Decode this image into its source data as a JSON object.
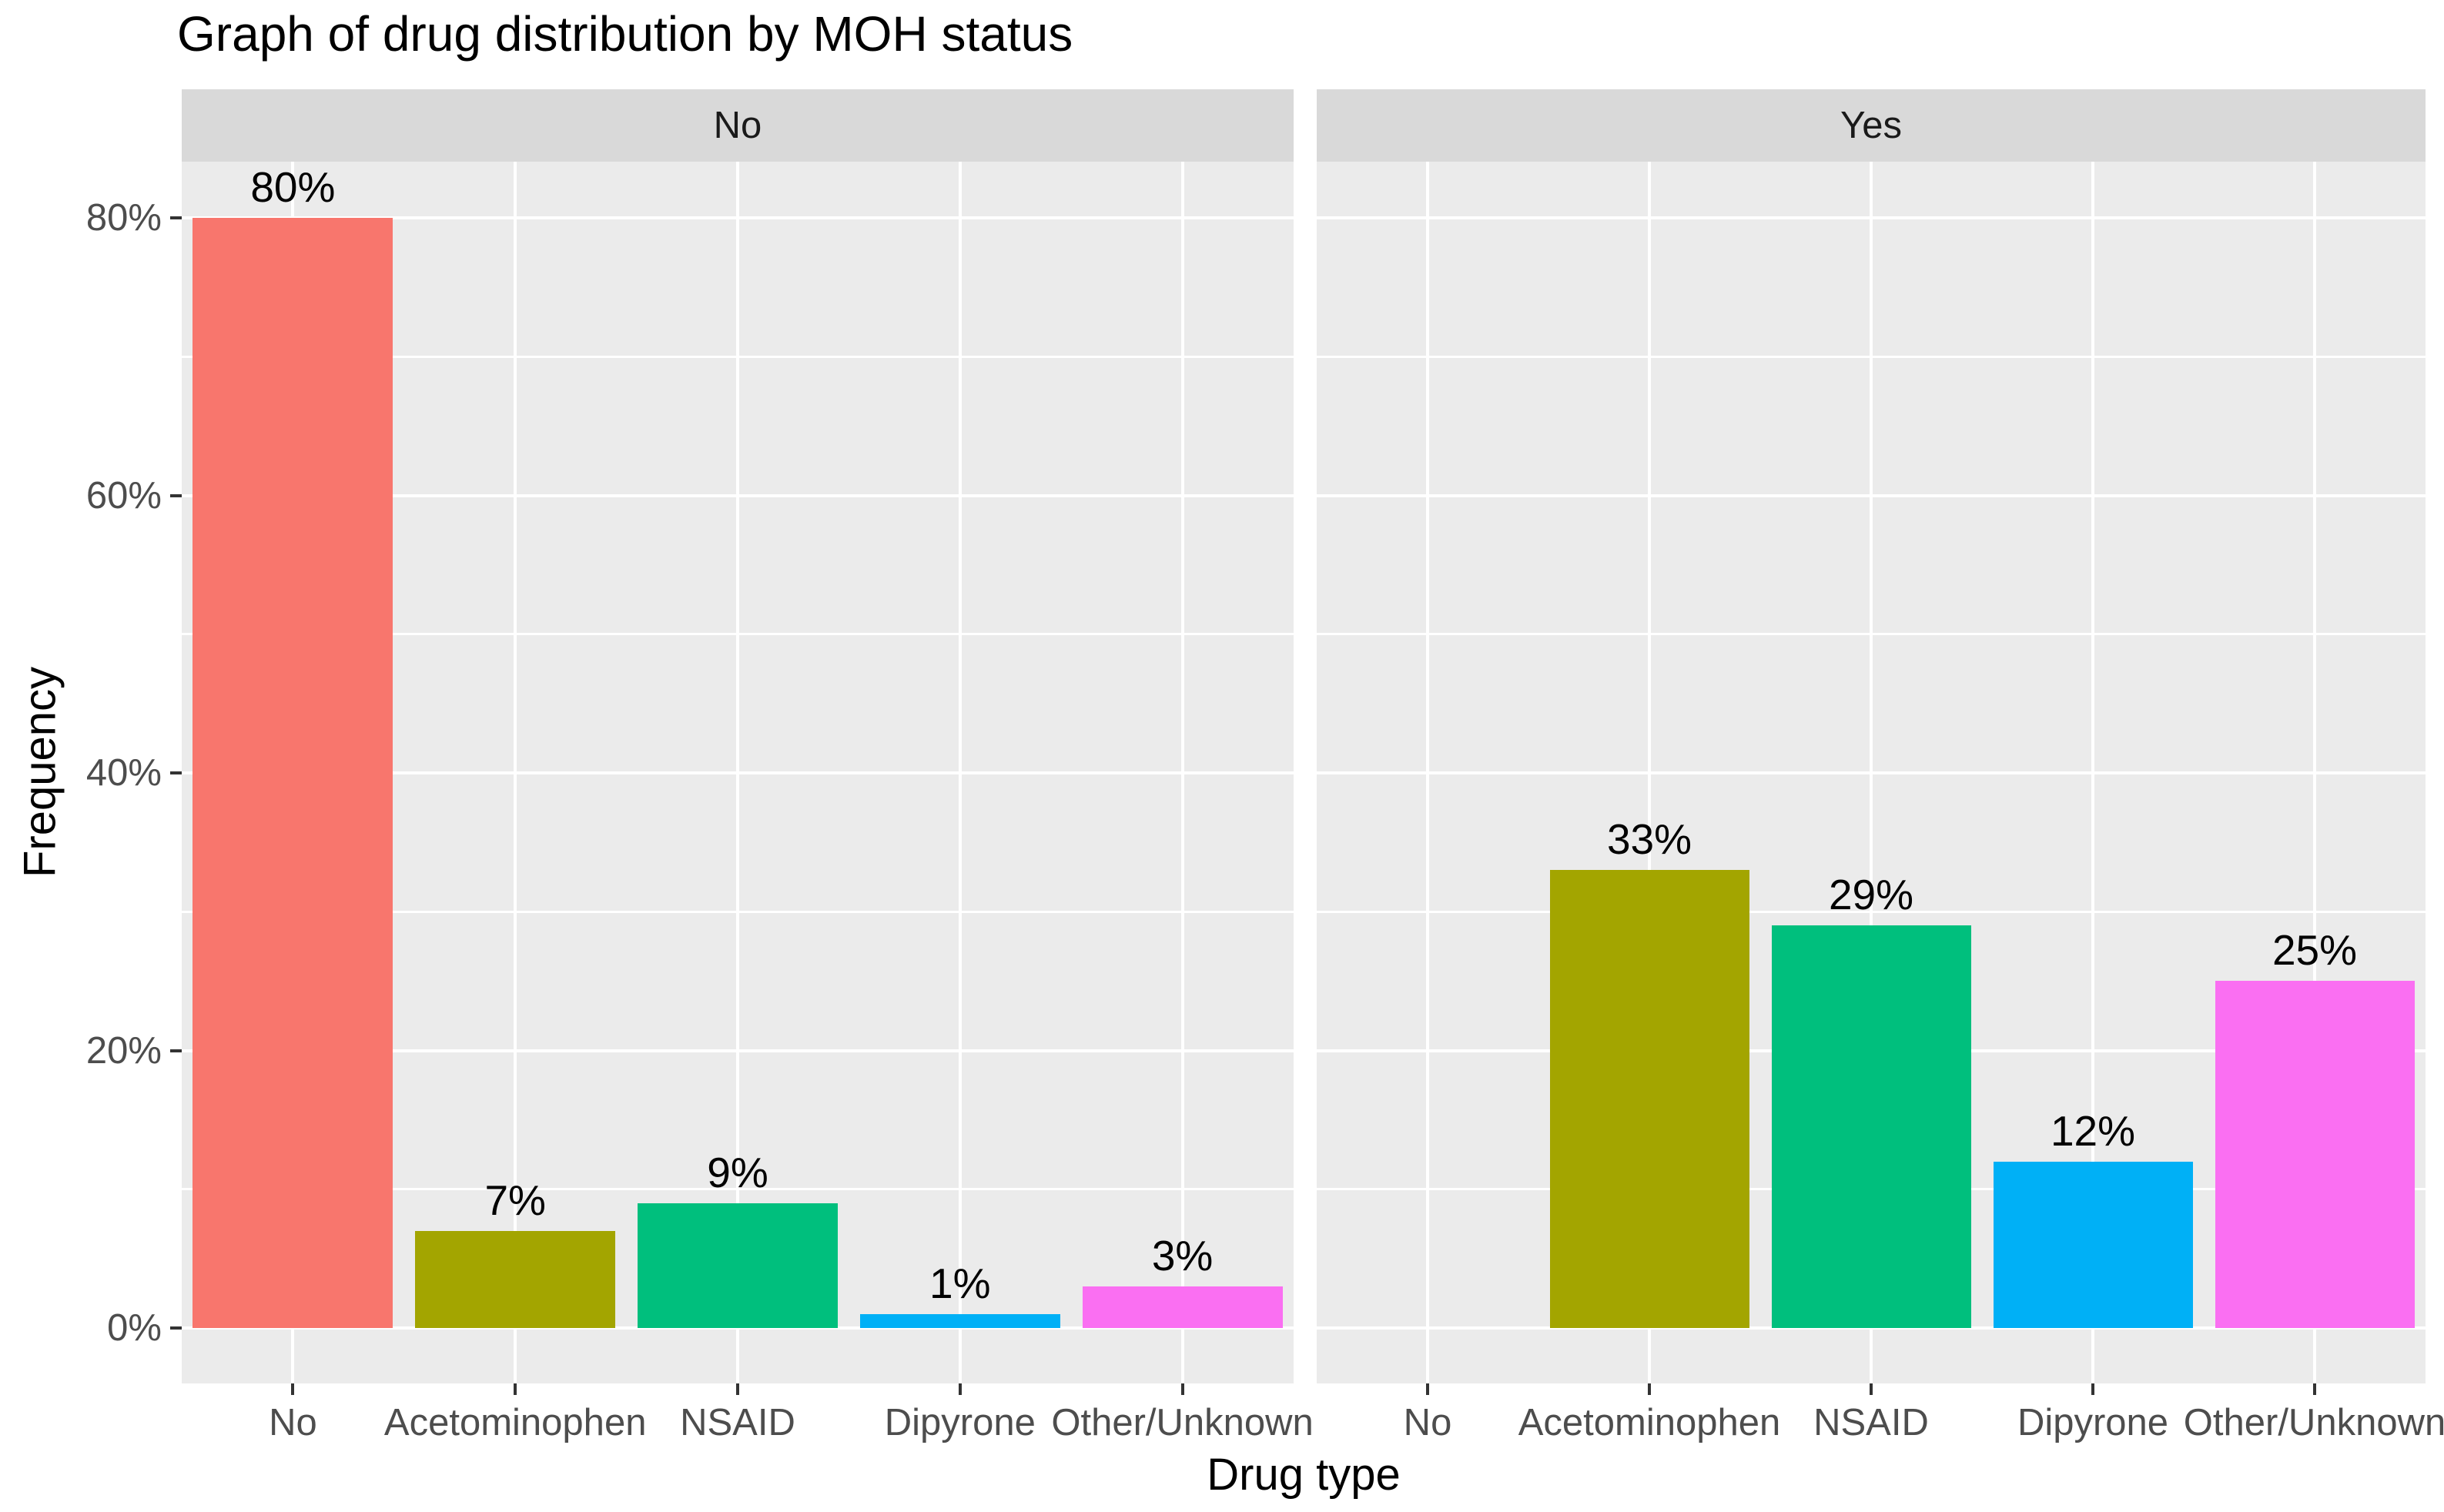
{
  "chart_data": {
    "type": "bar",
    "title": "Graph of drug distribution by MOH status",
    "xlabel": "Drug type",
    "ylabel": "Frequency",
    "categories": [
      "No",
      "Acetominophen",
      "NSAID",
      "Dipyrone",
      "Other/Unknown"
    ],
    "facets": [
      {
        "label": "No",
        "values": [
          80,
          7,
          9,
          1,
          3
        ],
        "bar_labels": [
          "80%",
          "7%",
          "9%",
          "1%",
          "3%"
        ]
      },
      {
        "label": "Yes",
        "values": [
          0,
          33,
          29,
          12,
          25
        ],
        "bar_labels": [
          "",
          "33%",
          "29%",
          "12%",
          "25%"
        ]
      }
    ],
    "bar_colors": [
      "#F8766D",
      "#A3A500",
      "#00BF7D",
      "#00B0F6",
      "#FA6FF2"
    ],
    "y_ticks": [
      "0%",
      "20%",
      "40%",
      "60%",
      "80%"
    ],
    "y_tick_values": [
      0,
      20,
      40,
      60,
      80
    ],
    "y_minor_values": [
      10,
      30,
      50,
      70
    ],
    "ylim": [
      -4,
      84
    ],
    "grid": true,
    "legend_position": "none",
    "theme": {
      "panel_bg": "#EBEBEB",
      "strip_bg": "#D9D9D9",
      "grid_color": "#FFFFFF",
      "axis_text_color": "#4D4D4D",
      "tick_mark_color": "#333333",
      "strip_text_color": "#1A1A1A",
      "title_color": "#000000",
      "bar_label_color": "#000000"
    }
  }
}
